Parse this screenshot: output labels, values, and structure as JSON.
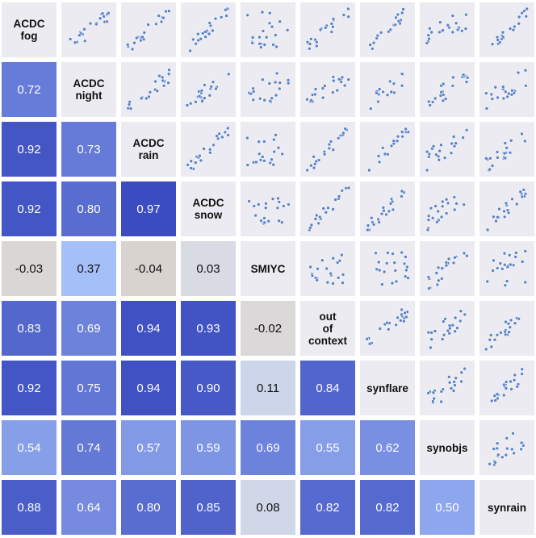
{
  "chart_data": {
    "type": "heatmap",
    "title": "",
    "layout": "pair-plot: correlation values below the diagonal, scatter plots above the diagonal, variable names on the diagonal",
    "variables": [
      [
        "ACDC",
        "fog"
      ],
      [
        "ACDC",
        "night"
      ],
      [
        "ACDC",
        "rain"
      ],
      [
        "ACDC",
        "snow"
      ],
      [
        "SMIYC"
      ],
      [
        "out",
        "of",
        "context"
      ],
      [
        "synflare"
      ],
      [
        "synobjs"
      ],
      [
        "synrain"
      ]
    ],
    "correlations": [
      [],
      [
        "0.72"
      ],
      [
        "0.92",
        "0.73"
      ],
      [
        "0.92",
        "0.80",
        "0.97"
      ],
      [
        "-0.03",
        "0.37",
        "-0.04",
        "0.03"
      ],
      [
        "0.83",
        "0.69",
        "0.94",
        "0.93",
        "-0.02"
      ],
      [
        "0.92",
        "0.75",
        "0.94",
        "0.90",
        "0.11",
        "0.84"
      ],
      [
        "0.54",
        "0.74",
        "0.57",
        "0.59",
        "0.69",
        "0.55",
        "0.62"
      ],
      [
        "0.88",
        "0.64",
        "0.80",
        "0.85",
        "0.08",
        "0.82",
        "0.82",
        "0.50"
      ]
    ],
    "colormap": {
      "negative": "#d9d3d0",
      "zero": "#dcdde2",
      "low": "#a9c3fb",
      "high": "#3b4cc0"
    },
    "scatter_point_color": "#5b82c6",
    "scatter_background": "#ebebf1"
  }
}
